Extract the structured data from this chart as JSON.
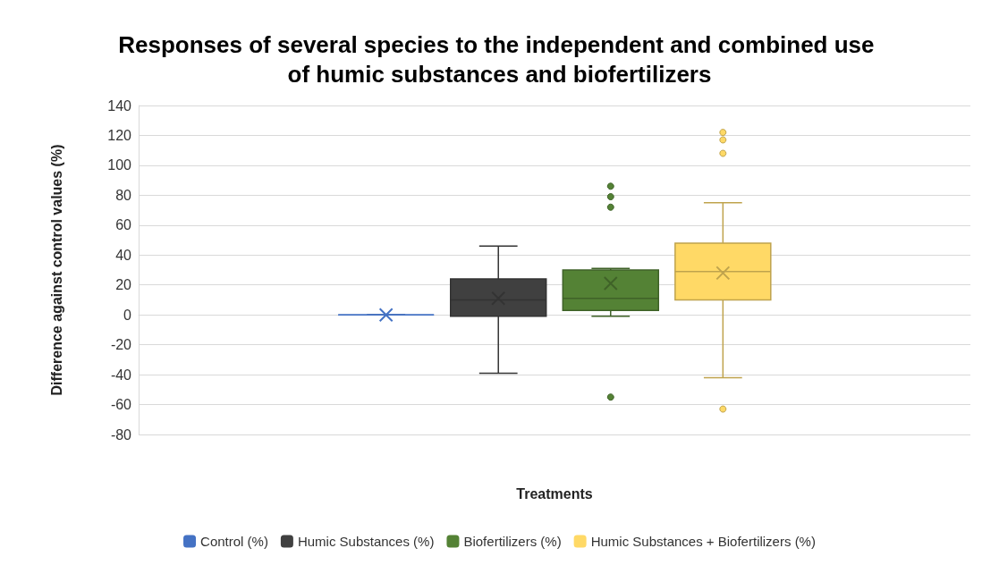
{
  "chart_data": {
    "type": "box",
    "title": "Responses of several species to the independent and combined use of humic substances and biofertilizers",
    "xlabel": "Treatments",
    "ylabel": "Difference against control values (%)",
    "categories": [
      null
    ],
    "series": [
      {
        "name": "Control (%)",
        "color": "#4472c4",
        "boxes": [
          {
            "low": 0,
            "q1": 0,
            "median": 0,
            "q3": 0,
            "high": 0,
            "mean": 0
          }
        ]
      },
      {
        "name": "Humic Substances (%)",
        "color": "#404040",
        "boxes": [
          {
            "low": -39,
            "q1": -1,
            "median": 10,
            "q3": 24,
            "high": 46,
            "mean": 11
          }
        ]
      },
      {
        "name": "Biofertilizers (%)",
        "color": "#548235",
        "boxes": [
          {
            "low": -1,
            "q1": 3,
            "median": 11,
            "q3": 30,
            "high": 31,
            "mean": 21,
            "outliers": [
              86,
              79,
              72,
              -55
            ]
          }
        ]
      },
      {
        "name": "Humic Substances + Biofertilizers (%)",
        "color": "#ffd966",
        "boxes": [
          {
            "low": -42,
            "q1": 10,
            "median": 29,
            "q3": 48,
            "high": 75,
            "mean": 28,
            "outliers": [
              122,
              117,
              108,
              -63
            ]
          }
        ]
      }
    ],
    "ylim": [
      -80,
      140
    ],
    "yticks": [
      -80,
      -60,
      -40,
      -20,
      0,
      20,
      40,
      60,
      80,
      100,
      120,
      140
    ],
    "grid": "y",
    "legend": "bottom"
  }
}
